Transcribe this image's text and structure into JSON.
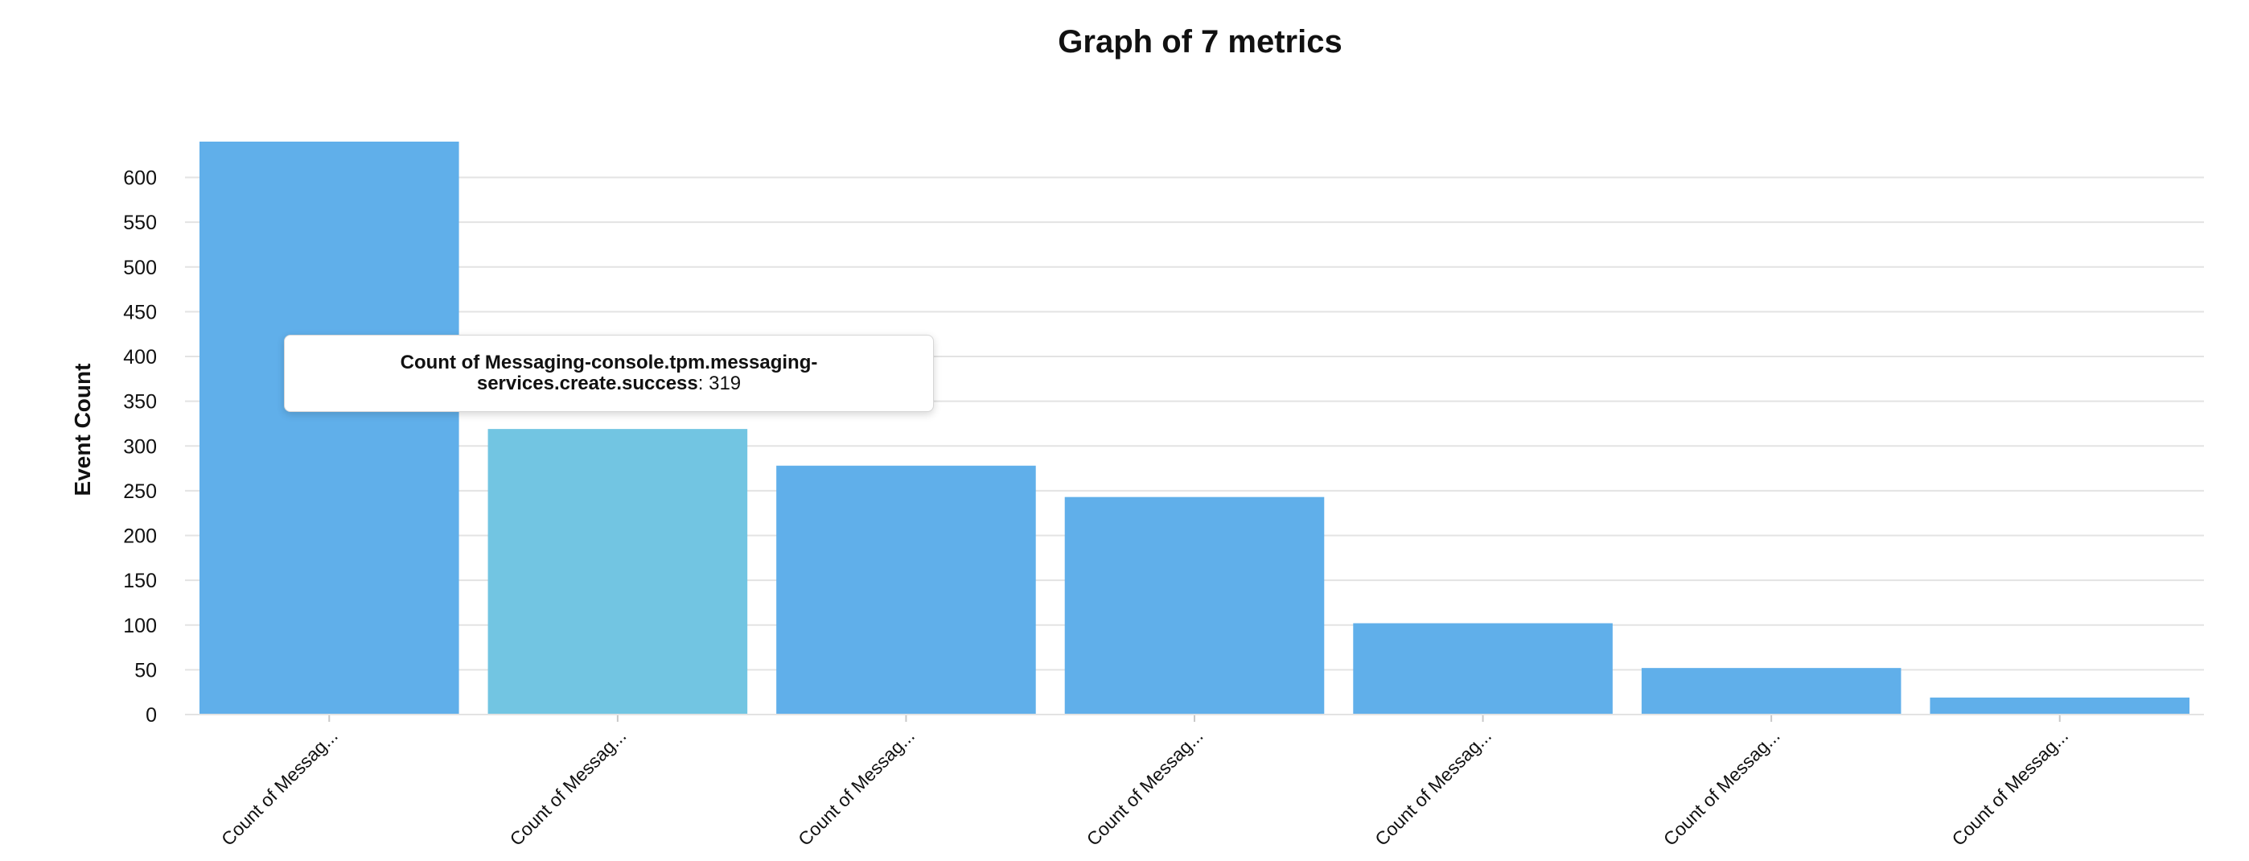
{
  "chart_data": {
    "type": "bar",
    "title": "Graph of 7 metrics",
    "xlabel": "",
    "ylabel": "Event Count",
    "categories": [
      "Count of Messag...",
      "Count of Messag...",
      "Count of Messag...",
      "Count of Messag...",
      "Count of Messag...",
      "Count of Messag...",
      "Count of Messag..."
    ],
    "values": [
      640,
      319,
      278,
      243,
      102,
      52,
      19
    ],
    "ylim": [
      0,
      640
    ],
    "yticks": [
      0,
      50,
      100,
      150,
      200,
      250,
      300,
      350,
      400,
      450,
      500,
      550,
      600
    ],
    "grid": true,
    "bar_color": "#60AFEA",
    "highlight_color": "#72C5E2",
    "highlight_index": 1,
    "tooltip": {
      "series": "Count of Messaging-console.tpm.messaging-services.create.success",
      "separator": ":",
      "value": "319"
    }
  }
}
